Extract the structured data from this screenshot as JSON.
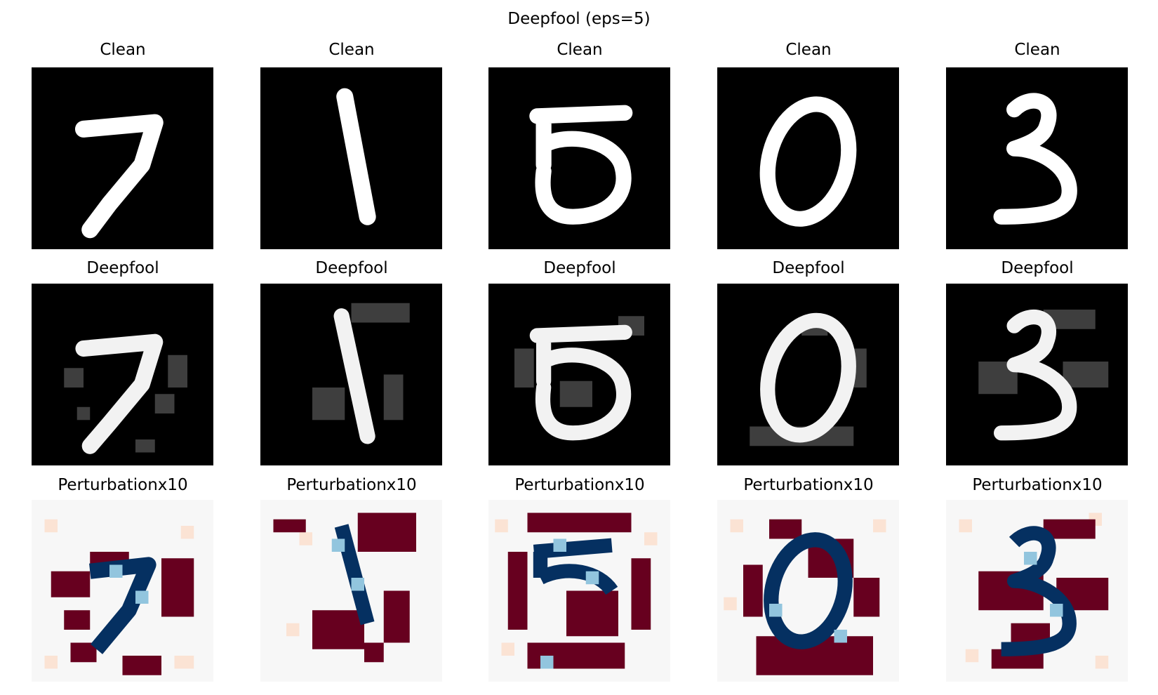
{
  "figure": {
    "suptitle": "Deepfool (eps=5)",
    "rows": [
      {
        "title": "Clean",
        "colormap": "gray"
      },
      {
        "title": "Deepfool",
        "colormap": "gray"
      },
      {
        "title": "Perturbationx10",
        "colormap": "RdBu"
      }
    ],
    "digits": [
      "7",
      "1",
      "5",
      "0",
      "3"
    ],
    "colors": {
      "black": "#000000",
      "white": "#ffffff",
      "dark_red": "#67001f",
      "light_pink": "#fbe3d4",
      "neutral": "#f7f7f7",
      "light_blue": "#92c5de",
      "dark_blue": "#053061"
    }
  }
}
